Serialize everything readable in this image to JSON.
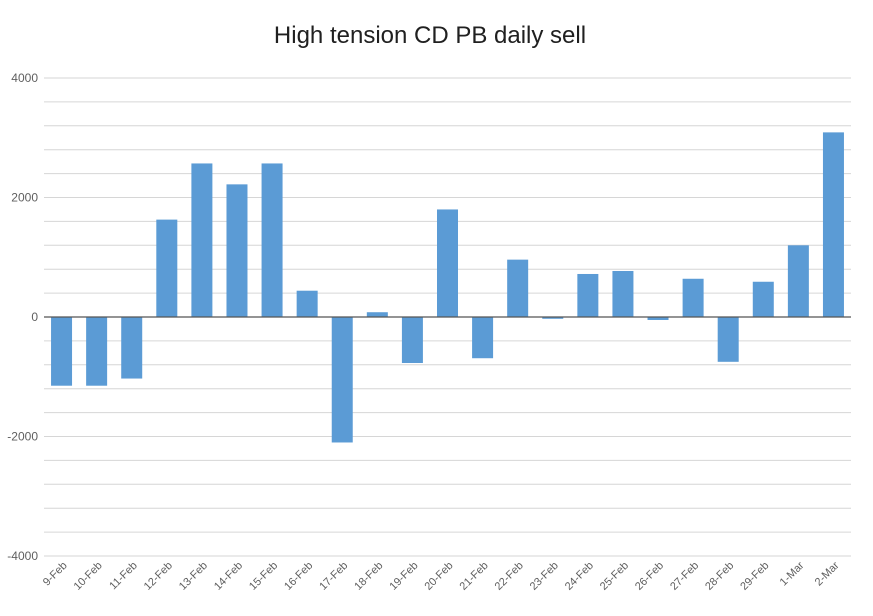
{
  "chart_data": {
    "type": "bar",
    "title": "High tension CD PB daily sell",
    "xlabel": "",
    "ylabel": "",
    "ylim": [
      -4000,
      4000
    ],
    "y_ticks": [
      4000,
      2000,
      0,
      -2000,
      -4000
    ],
    "y_tick_labels": [
      "4000",
      "2000",
      "0",
      "-2000",
      "-4000"
    ],
    "grid": true,
    "legend": "none",
    "bar_color": "#5B9BD5",
    "categories": [
      "9-Feb",
      "10-Feb",
      "11-Feb",
      "12-Feb",
      "13-Feb",
      "14-Feb",
      "15-Feb",
      "16-Feb",
      "17-Feb",
      "18-Feb",
      "19-Feb",
      "20-Feb",
      "21-Feb",
      "22-Feb",
      "23-Feb",
      "24-Feb",
      "25-Feb",
      "26-Feb",
      "27-Feb",
      "28-Feb",
      "29-Feb",
      "1-Mar",
      "2-Mar"
    ],
    "values": [
      -1150,
      -1150,
      -1030,
      1630,
      2570,
      2220,
      2570,
      440,
      -2100,
      80,
      -770,
      1800,
      -690,
      960,
      -30,
      720,
      770,
      -50,
      640,
      -750,
      590,
      1200,
      3090
    ]
  }
}
